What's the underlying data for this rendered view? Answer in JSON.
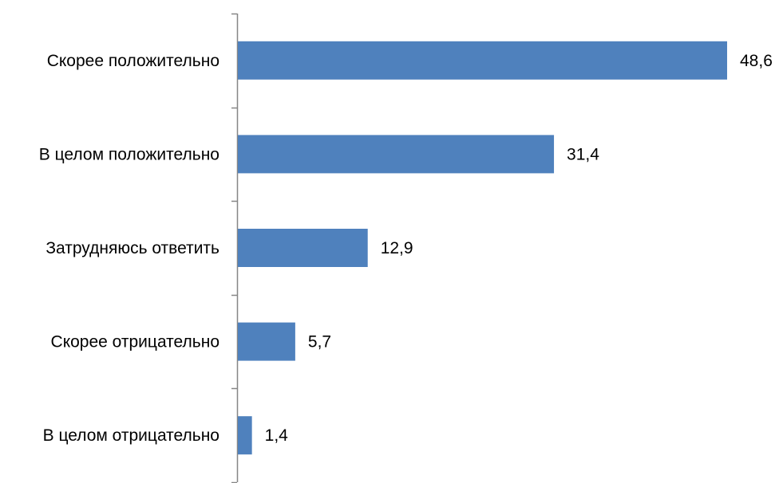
{
  "chart_data": {
    "type": "bar",
    "orientation": "horizontal",
    "title": "",
    "xlabel": "",
    "ylabel": "",
    "categories": [
      "Скорее положительно",
      "В целом положительно",
      "Затрудняюсь ответить",
      "Скорее отрицательно",
      "В целом отрицательно"
    ],
    "values": [
      48.6,
      31.4,
      12.9,
      5.7,
      1.4
    ],
    "value_labels": [
      "48,6",
      "31,4",
      "12,9",
      "5,7",
      "1,4"
    ],
    "xlim": [
      0,
      50
    ],
    "grid": false,
    "legend": "none",
    "colors": {
      "bar": "#4F81BD",
      "axis": "#868686",
      "text": "#000000"
    }
  }
}
